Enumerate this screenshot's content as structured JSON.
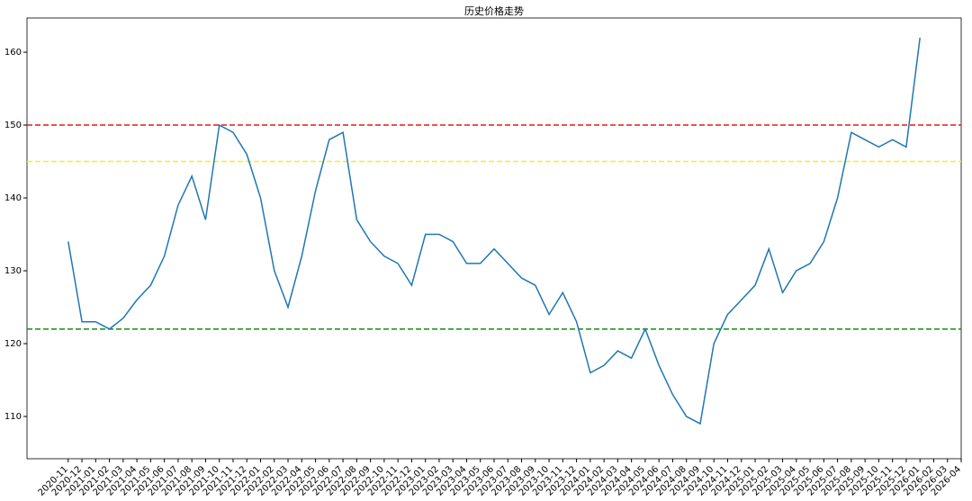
{
  "chart_data": {
    "type": "line",
    "title": "历史价格走势",
    "x": [
      "2020-11",
      "2020-12",
      "2021-01",
      "2021-02",
      "2021-03",
      "2021-04",
      "2021-05",
      "2021-06",
      "2021-07",
      "2021-08",
      "2021-09",
      "2021-10",
      "2021-11",
      "2021-12",
      "2022-01",
      "2022-02",
      "2022-03",
      "2022-04",
      "2022-05",
      "2022-06",
      "2022-07",
      "2022-08",
      "2022-09",
      "2022-10",
      "2022-11",
      "2022-12",
      "2023-01",
      "2023-02",
      "2023-03",
      "2023-04",
      "2023-05",
      "2023-06",
      "2023-07",
      "2023-08",
      "2023-09",
      "2023-10",
      "2023-11",
      "2023-12",
      "2024-01",
      "2024-02",
      "2024-03",
      "2024-04",
      "2024-05",
      "2024-06",
      "2024-07",
      "2024-08",
      "2024-09",
      "2024-10",
      "2024-11",
      "2024-12",
      "2025-01",
      "2025-02",
      "2025-03",
      "2025-04",
      "2025-05",
      "2025-06",
      "2025-07",
      "2025-08",
      "2025-09",
      "2025-10",
      "2025-11",
      "2025-12",
      "2026-01"
    ],
    "series": [
      {
        "color": "#1f77b4",
        "values": [
          134,
          123,
          123,
          122,
          123.5,
          126,
          128,
          132,
          139,
          143,
          137,
          150,
          149,
          146,
          140,
          130,
          125,
          132,
          141,
          148,
          149,
          137,
          134,
          132,
          131,
          128,
          135,
          135,
          134,
          131,
          131,
          133,
          131,
          129,
          128,
          124,
          127,
          123,
          116,
          117,
          119,
          118,
          122,
          117,
          113,
          110,
          109,
          120,
          124,
          126,
          128,
          133,
          127,
          130,
          131,
          134,
          140,
          149,
          148,
          147,
          148,
          147,
          162
        ]
      }
    ],
    "reference_lines": [
      {
        "value": 150,
        "color": "#e41a1c"
      },
      {
        "value": 145,
        "color": "#f2f21a"
      },
      {
        "value": 122,
        "color": "#138a13"
      }
    ],
    "xlim": [
      "2020-08",
      "2026-04"
    ],
    "xticks": [
      "2020-11",
      "2020-12",
      "2021-01",
      "2021-02",
      "2021-03",
      "2021-04",
      "2021-05",
      "2021-06",
      "2021-07",
      "2021-08",
      "2021-09",
      "2021-10",
      "2021-11",
      "2021-12",
      "2022-01",
      "2022-02",
      "2022-03",
      "2022-04",
      "2022-05",
      "2022-06",
      "2022-07",
      "2022-08",
      "2022-09",
      "2022-10",
      "2022-11",
      "2022-12",
      "2023-01",
      "2023-02",
      "2023-03",
      "2023-04",
      "2023-05",
      "2023-06",
      "2023-07",
      "2023-08",
      "2023-09",
      "2023-10",
      "2023-11",
      "2023-12",
      "2024-01",
      "2024-02",
      "2024-03",
      "2024-04",
      "2024-05",
      "2024-06",
      "2024-07",
      "2024-08",
      "2024-09",
      "2024-10",
      "2024-11",
      "2024-12",
      "2025-01",
      "2025-02",
      "2025-03",
      "2025-04",
      "2025-05",
      "2025-06",
      "2025-07",
      "2025-08",
      "2025-09",
      "2025-10",
      "2025-11",
      "2025-12",
      "2026-01",
      "2026-02",
      "2026-03",
      "2026-04"
    ],
    "ylim": [
      104.2,
      164.7
    ],
    "yticks": [
      110,
      120,
      130,
      140,
      150,
      160
    ]
  }
}
